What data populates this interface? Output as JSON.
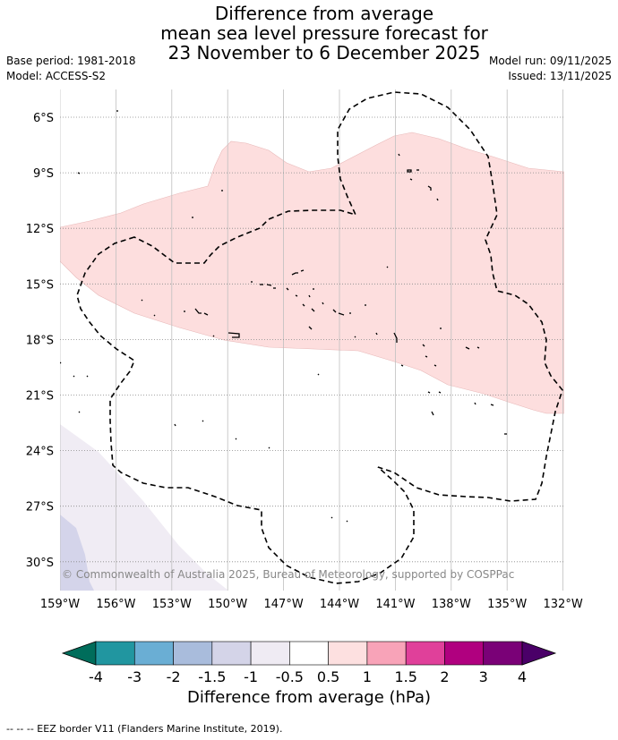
{
  "title": {
    "line1": "Difference from average",
    "line2": "mean sea level pressure forecast for",
    "line3": "23 November to 6 December 2025"
  },
  "meta": {
    "base_period": "Base period: 1981-2018",
    "model": "Model: ACCESS-S2",
    "model_run": "Model run: 09/11/2025",
    "issued": "Issued: 13/11/2025"
  },
  "map": {
    "lat_labels": [
      "6°S",
      "9°S",
      "12°S",
      "15°S",
      "18°S",
      "21°S",
      "24°S",
      "27°S",
      "30°S"
    ],
    "lon_labels": [
      "159°W",
      "156°W",
      "153°W",
      "150°W",
      "147°W",
      "144°W",
      "141°W",
      "138°W",
      "135°W",
      "132°W"
    ],
    "copyright": "© Commonwealth of Australia 2025, Bureau of Meteorology, supported by COSPPac",
    "anomaly_regions": [
      {
        "name": "positive anomaly band",
        "range": "0.5 to 1",
        "color": "#fddede"
      },
      {
        "name": "negative anomaly southwest",
        "range": "-1 to -0.5",
        "color": "#f0ecf4"
      },
      {
        "name": "negative anomaly southwest core",
        "range": "-1.5 to -1",
        "color": "#d4d4ea"
      }
    ]
  },
  "colorbar": {
    "ticks": [
      "-4",
      "-3",
      "-2",
      "-1.5",
      "-1",
      "-0.5",
      "0.5",
      "1",
      "1.5",
      "2",
      "3",
      "4"
    ],
    "colors": [
      "#006d5b",
      "#2196a0",
      "#6aaed4",
      "#a9bcdc",
      "#d4d4e8",
      "#efebf3",
      "#ffffff",
      "#fde0e0",
      "#f8a3b8",
      "#e0409a",
      "#b0007f",
      "#7a0177",
      "#4a0068"
    ],
    "label": "Difference from average (hPa)"
  },
  "footer": "--  --  -- EEZ border V11 (Flanders Marine Institute, 2019)."
}
